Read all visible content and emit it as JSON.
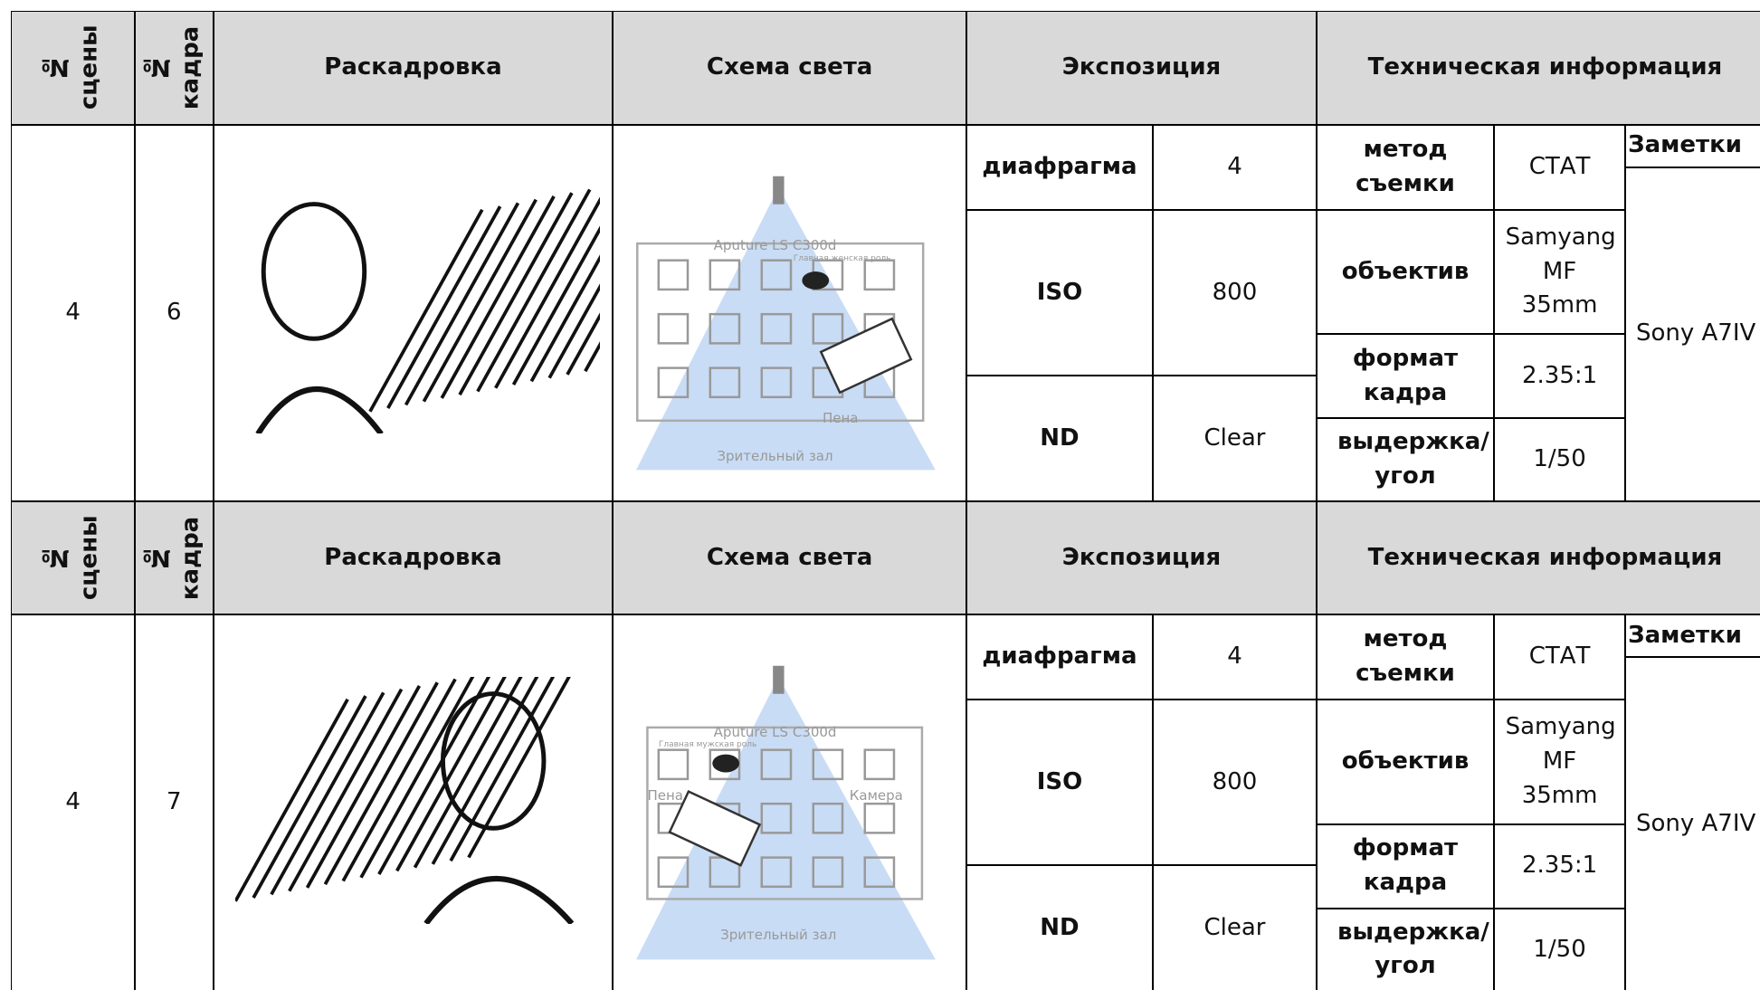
{
  "blocks": [
    {
      "header": {
        "scene": "№ сцены",
        "frame": "№ кадра",
        "storyboard": "Раскадровка",
        "light": "Схема света",
        "exposure": "Экспозиция",
        "tech": "Техническая информация"
      },
      "scene": "4",
      "frame": "6",
      "light_labels": [
        "Aputure LS C300d",
        "Главная женская роль",
        "Пена",
        "Зрительный зал"
      ],
      "exposure": [
        [
          "диафрагма",
          "4"
        ],
        [
          "ISO",
          "800"
        ],
        [
          "ND",
          "Clear"
        ]
      ],
      "tech": [
        [
          "метод съемки",
          "СТАТ"
        ],
        [
          "объектив",
          "Samyang MF 35mm"
        ],
        [
          "формат кадра",
          "2.35:1"
        ],
        [
          "выдержка/ угол",
          "1/50"
        ]
      ],
      "notes_header": "Заметки",
      "notes": "Sony A7IV"
    },
    {
      "header": {
        "scene": "№ сцены",
        "frame": "№ кадра",
        "storyboard": "Раскадровка",
        "light": "Схема света",
        "exposure": "Экспозиция",
        "tech": "Техническая информация"
      },
      "scene": "4",
      "frame": "7",
      "light_labels": [
        "Aputure LS C300d",
        "Главная мужская роль",
        "Пена",
        "Камера",
        "Зрительный зал"
      ],
      "exposure": [
        [
          "диафрагма",
          "4"
        ],
        [
          "ISO",
          "800"
        ],
        [
          "ND",
          "Clear"
        ]
      ],
      "tech": [
        [
          "метод съемки",
          "СТАТ"
        ],
        [
          "объектив",
          "Samyang MF 35mm"
        ],
        [
          "формат кадра",
          "2.35:1"
        ],
        [
          "выдержка/ угол",
          "1/50"
        ]
      ],
      "notes_header": "Заметки",
      "notes": "Sony A7IV"
    }
  ]
}
